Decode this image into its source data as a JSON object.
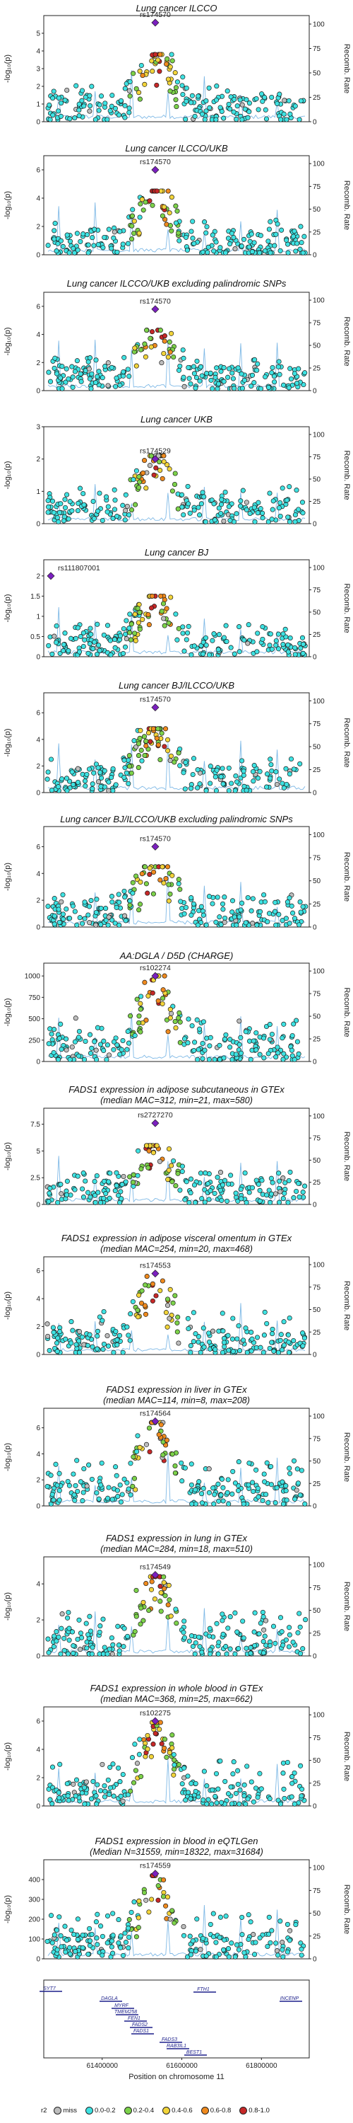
{
  "xaxis": {
    "label": "Position on chromosome 11",
    "ticks": [
      "61400000",
      "61600000",
      "61800000"
    ]
  },
  "yaxis_left": "-log₁₀(p)",
  "yaxis_right": "Recomb. Rate",
  "legend": {
    "title": "r2",
    "items": [
      {
        "label": "miss",
        "color": "#bdbdbd"
      },
      {
        "label": "0.0-0.2",
        "color": "#3ee2e2"
      },
      {
        "label": "0.2-0.4",
        "color": "#7cd24a"
      },
      {
        "label": "0.4-0.6",
        "color": "#f2d43a"
      },
      {
        "label": "0.6-0.8",
        "color": "#ef8a1e"
      },
      {
        "label": "0.8-1.0",
        "color": "#c62828"
      }
    ],
    "lead_color": "#7b1fbf"
  },
  "genes": [
    "SYT7",
    "DAGLA",
    "MYRF",
    "TMEM258",
    "FEN1",
    "FADS2",
    "FADS1",
    "FADS3",
    "RAB3IL1",
    "BEST1",
    "FTH1",
    "INCENP"
  ],
  "chart_data": [
    {
      "type": "scatter",
      "title": "Lung cancer ILCCO",
      "subtitle": "",
      "lead_snp": "rs174570",
      "lead_y": 5.6,
      "ylim": [
        0,
        6
      ],
      "yticks": [
        0,
        1,
        2,
        3,
        4,
        5
      ],
      "peak": 3.8
    },
    {
      "type": "scatter",
      "title": "Lung cancer ILCCO/UKB",
      "subtitle": "",
      "lead_snp": "rs174570",
      "lead_y": 6.0,
      "ylim": [
        0,
        7
      ],
      "yticks": [
        0,
        2,
        4,
        6
      ],
      "peak": 4.5
    },
    {
      "type": "scatter",
      "title": "Lung cancer ILCCO/UKB excluding palindromic SNPs",
      "subtitle": "",
      "lead_snp": "rs174570",
      "lead_y": 5.8,
      "ylim": [
        0,
        7
      ],
      "yticks": [
        0,
        2,
        4,
        6
      ],
      "peak": 4.3
    },
    {
      "type": "scatter",
      "title": "Lung cancer UKB",
      "subtitle": "",
      "lead_snp": "rs174529",
      "lead_y": 2.0,
      "ylim": [
        0,
        3
      ],
      "yticks": [
        0,
        1,
        2,
        3
      ],
      "peak": 2.1
    },
    {
      "type": "scatter",
      "title": "Lung cancer BJ",
      "subtitle": "",
      "lead_snp": "rs111807001",
      "lead_y": 2.0,
      "ylim": [
        0,
        2.4
      ],
      "yticks": [
        0.0,
        0.5,
        1.0,
        1.5,
        2.0
      ],
      "peak": 1.5
    },
    {
      "type": "scatter",
      "title": "Lung cancer BJ/ILCCO/UKB",
      "subtitle": "",
      "lead_snp": "rs174570",
      "lead_y": 6.4,
      "ylim": [
        0,
        7.5
      ],
      "yticks": [
        0,
        2,
        4,
        6
      ],
      "peak": 4.8
    },
    {
      "type": "scatter",
      "title": "Lung cancer BJ/ILCCO/UKB excluding palindromic SNPs",
      "subtitle": "",
      "lead_snp": "rs174570",
      "lead_y": 6.0,
      "ylim": [
        0,
        7.5
      ],
      "yticks": [
        0,
        2,
        4,
        6
      ],
      "peak": 4.5
    },
    {
      "type": "scatter",
      "title": "AA:DGLA / D5D (CHARGE)",
      "subtitle": "",
      "lead_snp": "rs102274",
      "lead_y": 1000,
      "ylim": [
        0,
        1150
      ],
      "yticks": [
        0,
        250,
        500,
        750,
        1000
      ],
      "peak": 1000
    },
    {
      "type": "scatter",
      "title": "FADS1 expression in adipose subcutaneous in GTEx",
      "subtitle": "(median MAC=312, min=21, max=580)",
      "lead_snp": "rs2727270",
      "lead_y": 7.6,
      "ylim": [
        0,
        9
      ],
      "yticks": [
        0.0,
        2.5,
        5.0,
        7.5
      ],
      "peak": 5.5
    },
    {
      "type": "scatter",
      "title": "FADS1 expression in adipose visceral omentum in GTEx",
      "subtitle": "(median MAC=254, min=20, max=468)",
      "lead_snp": "rs174553",
      "lead_y": 5.8,
      "ylim": [
        0,
        7
      ],
      "yticks": [
        0,
        2,
        4,
        6
      ],
      "peak": 5.6
    },
    {
      "type": "scatter",
      "title": "FADS1 expression in liver in GTEx",
      "subtitle": "(median MAC=114, min=8, max=208)",
      "lead_snp": "rs174564",
      "lead_y": 6.5,
      "ylim": [
        0,
        7.5
      ],
      "yticks": [
        0,
        2,
        4,
        6
      ],
      "peak": 6.4
    },
    {
      "type": "scatter",
      "title": "FADS1 expression in lung in GTEx",
      "subtitle": "(median MAC=284, min=18, max=510)",
      "lead_snp": "rs174549",
      "lead_y": 4.5,
      "ylim": [
        0,
        5.5
      ],
      "yticks": [
        0,
        2,
        4
      ],
      "peak": 4.4
    },
    {
      "type": "scatter",
      "title": "FADS1 expression in whole blood in GTEx",
      "subtitle": "(median MAC=368, min=25, max=662)",
      "lead_snp": "rs102275",
      "lead_y": 6.0,
      "ylim": [
        0,
        7
      ],
      "yticks": [
        0,
        2,
        4,
        6
      ],
      "peak": 5.9
    },
    {
      "type": "scatter",
      "title": "FADS1 expression in blood in eQTLGen",
      "subtitle": "(Median N=31559, min=18322, max=31684)",
      "lead_snp": "rs174559",
      "lead_y": 430,
      "ylim": [
        0,
        500
      ],
      "yticks": [
        0,
        100,
        200,
        300,
        400
      ],
      "peak": 420
    }
  ],
  "recomb_ticks": [
    0,
    25,
    50,
    75,
    100
  ]
}
